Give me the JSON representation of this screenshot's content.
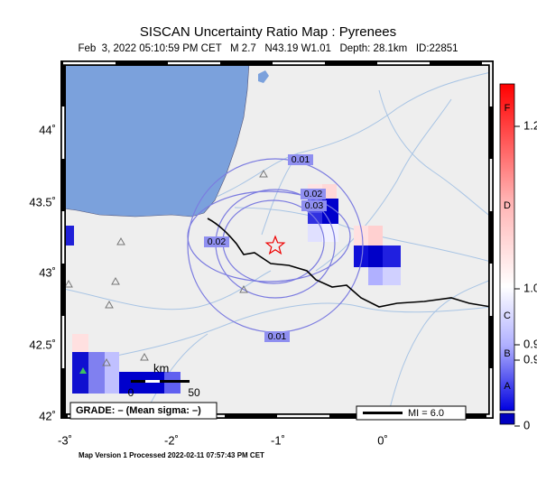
{
  "header": {
    "title": "SISCAN Uncertainty Ratio Map : Pyrenees",
    "subtitle": "Feb  3, 2022 05:10:59 PM CET   M 2.7   N43.19 W1.01   Depth: 28.1km   ID:22851"
  },
  "lat_labels": [
    "44˚",
    "43.5˚",
    "43˚",
    "42.5˚",
    "42˚"
  ],
  "lon_labels": [
    "-3˚",
    "-2˚",
    "-1˚",
    "0˚"
  ],
  "contour_labels": [
    "0.01",
    "0.02",
    "0.03",
    "0.02",
    "0.01"
  ],
  "scale": {
    "unit": "km",
    "labels": [
      "0",
      "50"
    ]
  },
  "legend": {
    "grade": "GRADE: – (Mean sigma: –)",
    "mi": "MI = 6.0"
  },
  "colorbar": {
    "grades": [
      "F",
      "D",
      "C",
      "B",
      "A"
    ],
    "ticks": [
      "1.2",
      "1.0",
      "0.9",
      "0.9",
      "0"
    ]
  },
  "footer": "Map Version 1 Processed 2022-02-11 07:57:43 PM CET"
}
